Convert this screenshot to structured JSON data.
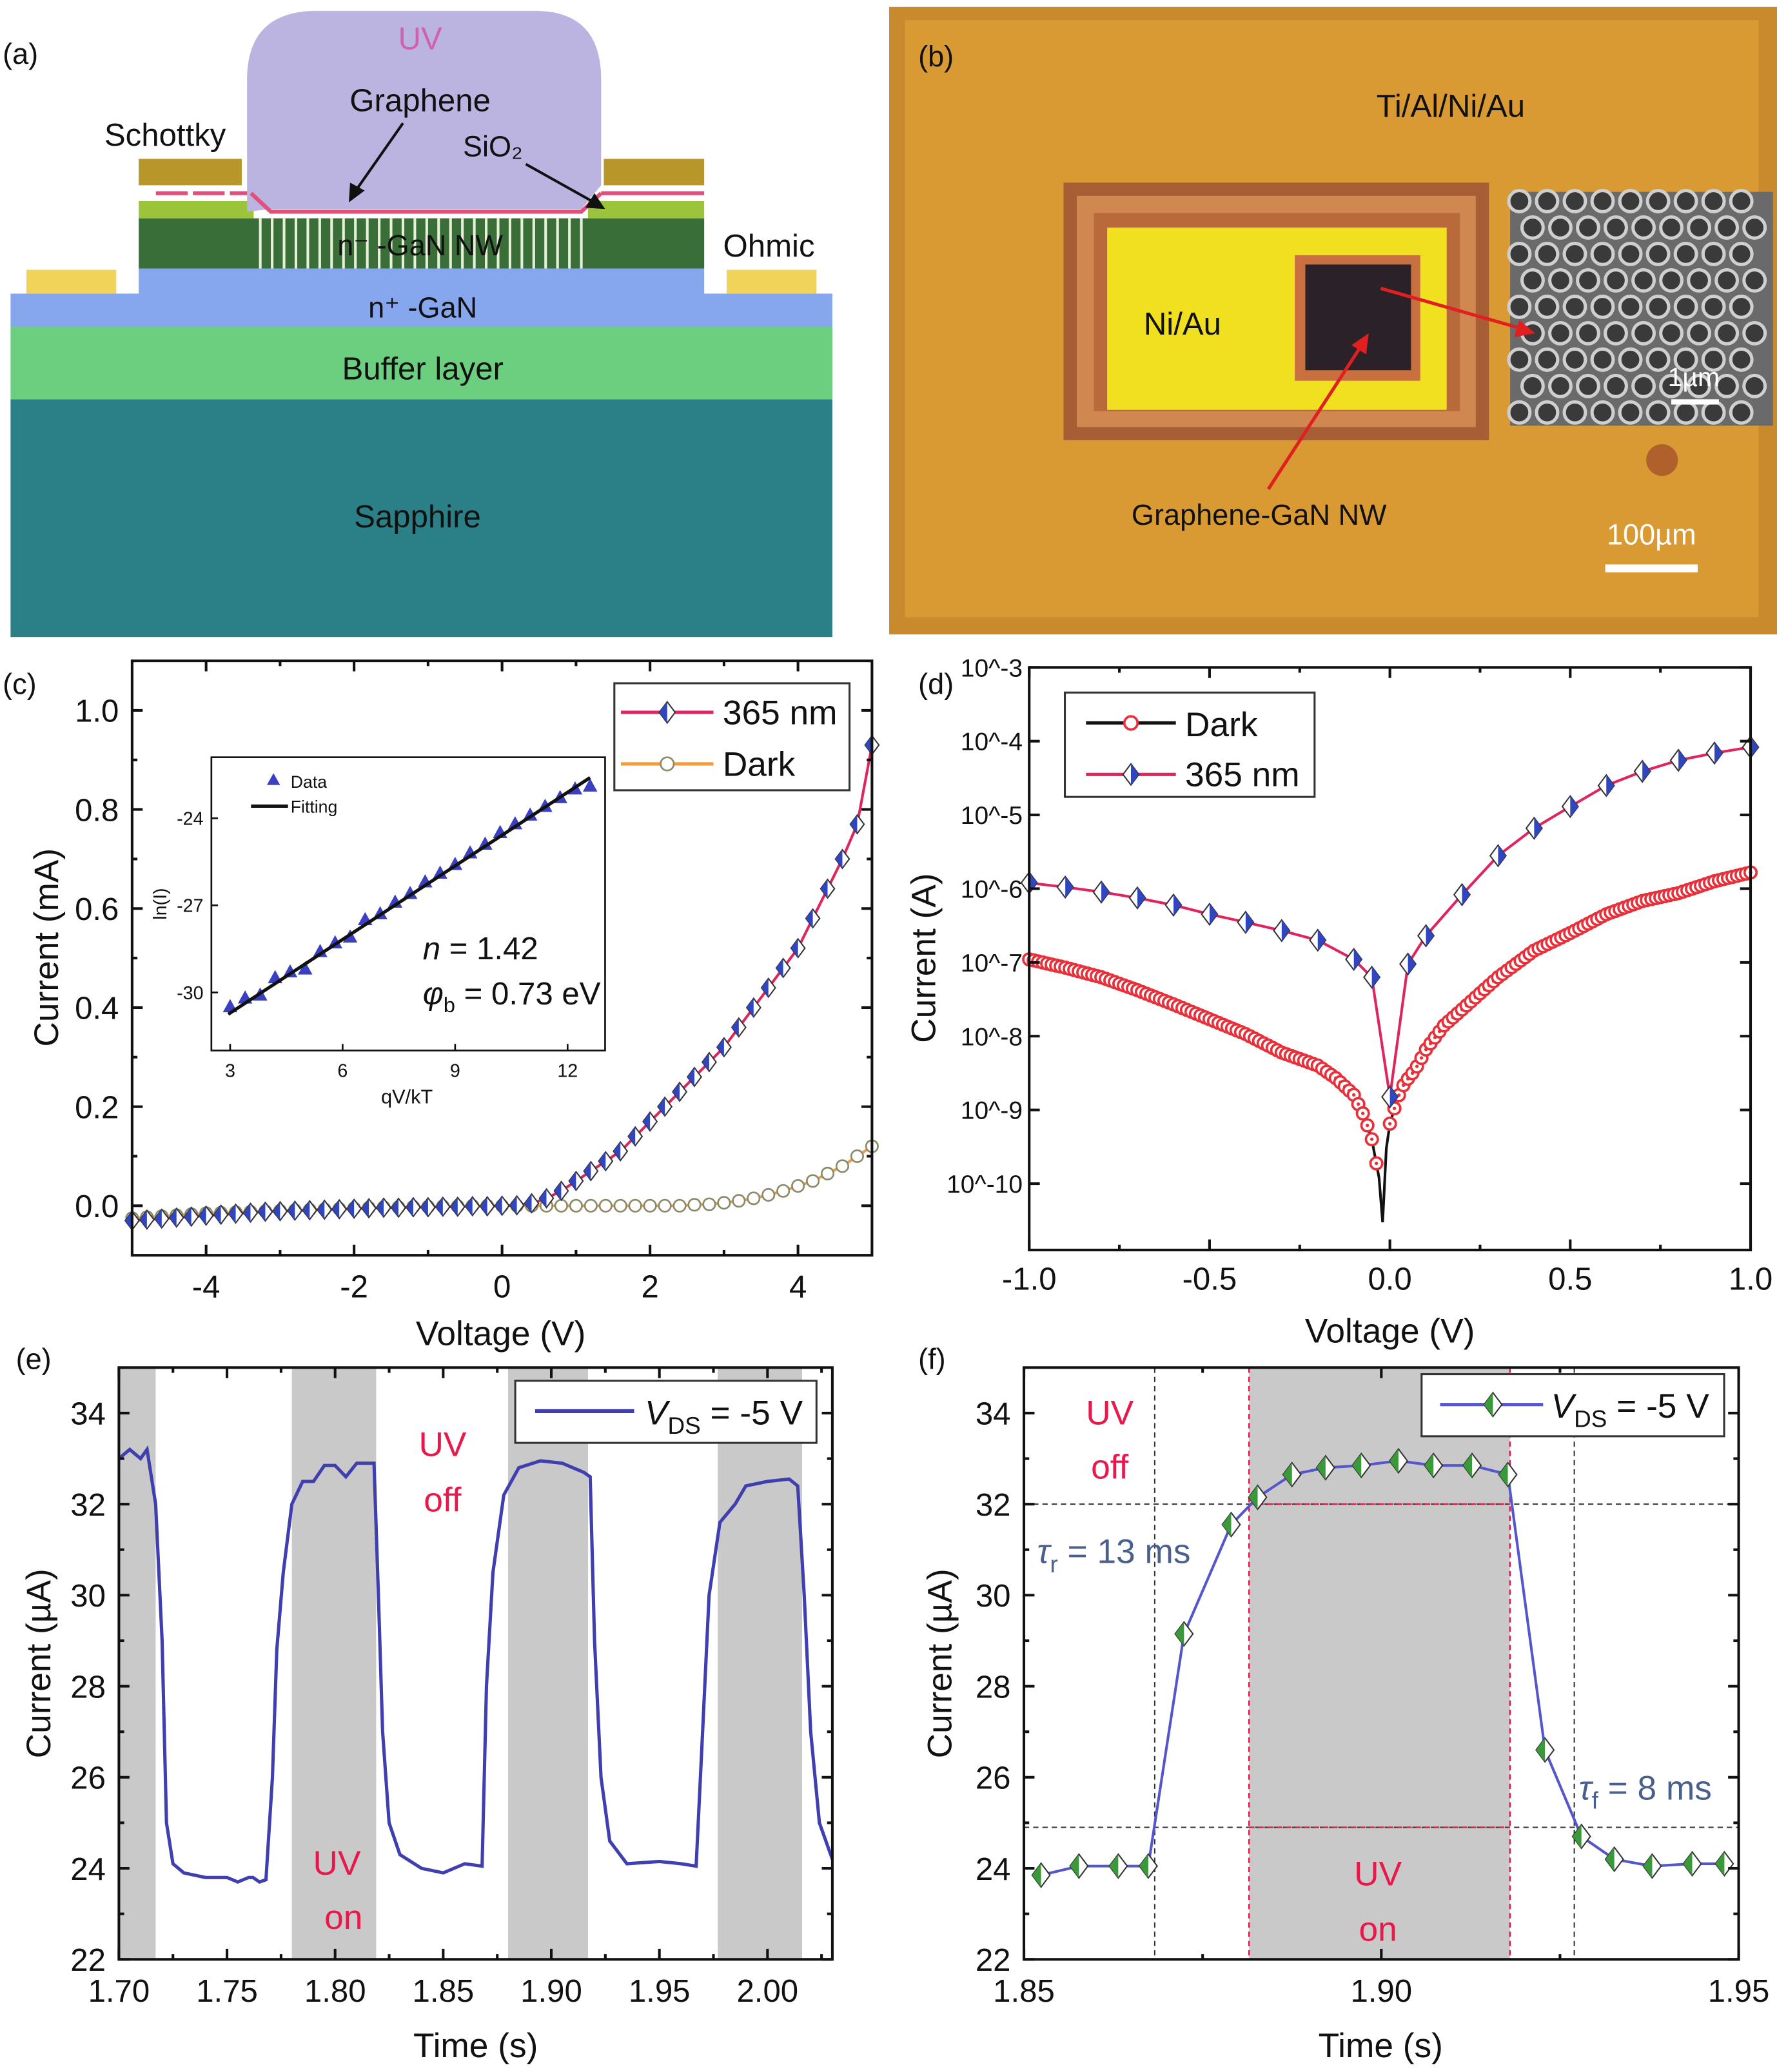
{
  "panel_a": {
    "label": "(a)",
    "uv": "UV",
    "graphene": "Graphene",
    "schottky": "Schottky",
    "sio2": "SiO₂",
    "nw_layer": "n⁻ -GaN NW",
    "ohmic": "Ohmic",
    "nplus_layer": "n⁺ -GaN",
    "buffer": "Buffer layer",
    "substrate": "Sapphire",
    "colors": {
      "uv": "#bcb4e0",
      "sapphire": "#2b7f86",
      "buffer": "#6ccf80",
      "nplus": "#86a6ee",
      "nw": "#3a6e38",
      "schottky": "#b8962a",
      "ohmic": "#f0d35a",
      "sio2": "#e0507a"
    }
  },
  "panel_b": {
    "label": "(b)",
    "outer_metal": "Ti/Al/Ni/Au",
    "inner_metal": "Ni/Au",
    "active": "Graphene-GaN NW",
    "sem_scale": "1µm",
    "scale": "100µm"
  },
  "chart_data": [
    {
      "panel": "(c)",
      "type": "line",
      "xlabel": "Voltage (V)",
      "ylabel": "Current (mA)",
      "xlim": [
        -5,
        5
      ],
      "ylim": [
        -0.1,
        1.1
      ],
      "xticks": [
        -4,
        -2,
        0,
        2,
        4
      ],
      "xtick_labels": [
        "-4",
        "-2",
        "0",
        "2",
        "4"
      ],
      "yticks": [
        0,
        0.2,
        0.4,
        0.6,
        0.8,
        1.0
      ],
      "ytick_labels": [
        "0.0",
        "0.2",
        "0.4",
        "0.6",
        "0.8",
        "1.0"
      ],
      "legend": "top-right",
      "x": [
        -5,
        -4.8,
        -4.6,
        -4.4,
        -4.2,
        -4,
        -3.8,
        -3.6,
        -3.4,
        -3.2,
        -3,
        -2.8,
        -2.6,
        -2.4,
        -2.2,
        -2,
        -1.8,
        -1.6,
        -1.4,
        -1.2,
        -1,
        -0.8,
        -0.6,
        -0.4,
        -0.2,
        0,
        0.2,
        0.4,
        0.6,
        0.8,
        1,
        1.2,
        1.4,
        1.6,
        1.8,
        2,
        2.2,
        2.4,
        2.6,
        2.8,
        3,
        3.2,
        3.4,
        3.6,
        3.8,
        4,
        4.2,
        4.4,
        4.6,
        4.8,
        5
      ],
      "series": [
        {
          "name": "365 nm",
          "color": "#e0245e",
          "marker_color": "#3046c0",
          "values": [
            -0.03,
            -0.028,
            -0.026,
            -0.024,
            -0.022,
            -0.02,
            -0.018,
            -0.016,
            -0.014,
            -0.012,
            -0.011,
            -0.01,
            -0.009,
            -0.008,
            -0.007,
            -0.006,
            -0.005,
            -0.004,
            -0.004,
            -0.003,
            -0.003,
            -0.002,
            -0.002,
            -0.001,
            -0.001,
            0,
            0.001,
            0.005,
            0.015,
            0.03,
            0.05,
            0.07,
            0.09,
            0.11,
            0.14,
            0.17,
            0.2,
            0.23,
            0.26,
            0.29,
            0.32,
            0.36,
            0.4,
            0.44,
            0.48,
            0.52,
            0.58,
            0.64,
            0.7,
            0.77,
            0.93
          ]
        },
        {
          "name": "Dark",
          "color": "#f59a3a",
          "marker_color": "#8a8a6a",
          "values": [
            -0.025,
            -0.023,
            -0.021,
            -0.019,
            -0.017,
            -0.015,
            -0.014,
            -0.013,
            -0.012,
            -0.011,
            -0.01,
            -0.009,
            -0.008,
            -0.007,
            -0.006,
            -0.005,
            -0.004,
            -0.003,
            -0.003,
            -0.002,
            -0.002,
            -0.001,
            -0.001,
            0,
            0,
            0,
            0,
            0,
            0,
            0,
            0,
            0,
            0,
            0,
            0,
            0,
            0,
            0,
            0.002,
            0.003,
            0.006,
            0.01,
            0.015,
            0.022,
            0.03,
            0.04,
            0.05,
            0.065,
            0.08,
            0.1,
            0.12
          ]
        }
      ]
    },
    {
      "panel": "(c) inset",
      "type": "scatter",
      "xlabel": "qV/kT",
      "ylabel": "ln(I)",
      "xlim": [
        2.5,
        13
      ],
      "ylim": [
        -32,
        -21.9
      ],
      "xticks": [
        3,
        6,
        9,
        12
      ],
      "xtick_labels": [
        "3",
        "6",
        "9",
        "12"
      ],
      "yticks": [
        -24,
        -27,
        -30
      ],
      "ytick_labels": [
        "-24",
        "-27",
        "-30"
      ],
      "legend": "top-left",
      "x": [
        3.0,
        3.4,
        3.8,
        4.2,
        4.6,
        5.0,
        5.4,
        5.8,
        6.2,
        6.6,
        7.0,
        7.4,
        7.8,
        8.2,
        8.6,
        9.0,
        9.4,
        9.8,
        10.2,
        10.6,
        11.0,
        11.4,
        11.8,
        12.2,
        12.6
      ],
      "series": [
        {
          "name": "Data",
          "color": "#3a40c0",
          "values": [
            -30.5,
            -30.2,
            -30.1,
            -29.5,
            -29.3,
            -29.2,
            -28.6,
            -28.3,
            -28.1,
            -27.5,
            -27.3,
            -26.9,
            -26.6,
            -26.2,
            -25.9,
            -25.6,
            -25.2,
            -24.9,
            -24.5,
            -24.2,
            -23.9,
            -23.6,
            -23.3,
            -23.0,
            -22.9
          ]
        },
        {
          "name": "Fitting",
          "color": "#111111",
          "x": [
            2.95,
            12.6
          ],
          "values": [
            -30.75,
            -22.6
          ]
        }
      ],
      "annotations": {
        "ideality": {
          "symbol": "n",
          "text": " = 1.42"
        },
        "barrier": {
          "symbol": "φ",
          "sub": "b",
          "text": " = 0.73 eV"
        }
      }
    },
    {
      "panel": "(d)",
      "type": "line",
      "xlabel": "Voltage (V)",
      "ylabel": "Current (A)",
      "xlim": [
        -1,
        1
      ],
      "ylim": [
        1.26e-11,
        0.001
      ],
      "yscale": "log",
      "xticks": [
        -1,
        -0.5,
        0,
        0.5,
        1
      ],
      "xtick_labels": [
        "-1.0",
        "-0.5",
        "0.0",
        "0.5",
        "1.0"
      ],
      "yticks": [
        0.001,
        0.0001,
        1e-05,
        1e-06,
        1e-07,
        1e-08,
        1e-09,
        1e-10
      ],
      "ytick_labels": [
        "10^-3",
        "10^-4",
        "10^-5",
        "10^-6",
        "10^-7",
        "10^-8",
        "10^-9",
        "10^-10"
      ],
      "legend": "top-left",
      "series": [
        {
          "name": "Dark",
          "color": "#111111",
          "marker_color": "#e8303a",
          "x": [
            -1,
            -0.9,
            -0.8,
            -0.7,
            -0.6,
            -0.5,
            -0.4,
            -0.3,
            -0.2,
            -0.15,
            -0.1,
            -0.07,
            -0.05,
            -0.03,
            -0.02,
            -0.01,
            0,
            0.02,
            0.04,
            0.07,
            0.1,
            0.15,
            0.2,
            0.3,
            0.4,
            0.5,
            0.6,
            0.7,
            0.8,
            0.9,
            1.0
          ],
          "values": [
            1.1e-07,
            8.5e-08,
            6.3e-08,
            4.2e-08,
            2.7e-08,
            1.7e-08,
            1.07e-08,
            6e-09,
            4e-09,
            2.7e-09,
            1.6e-09,
            8e-10,
            4e-10,
            1.2e-10,
            3e-11,
            3e-10,
            6.5e-10,
            1.4e-09,
            2.3e-09,
            3.5e-09,
            6.6e-09,
            1.4e-08,
            2.3e-08,
            6.3e-08,
            1.45e-07,
            2.5e-07,
            4.5e-07,
            6.8e-07,
            8.7e-07,
            1.26e-06,
            1.66e-06
          ]
        },
        {
          "name": "365 nm",
          "color": "#e0245e",
          "marker_color": "#3046c0",
          "x": [
            -1,
            -0.9,
            -0.8,
            -0.7,
            -0.6,
            -0.5,
            -0.4,
            -0.3,
            -0.2,
            -0.1,
            -0.05,
            0,
            0.05,
            0.1,
            0.2,
            0.3,
            0.4,
            0.5,
            0.6,
            0.7,
            0.8,
            0.9,
            1.0
          ],
          "values": [
            1.2e-06,
            1.05e-06,
            9e-07,
            7.5e-07,
            6e-07,
            4.5e-07,
            3.5e-07,
            2.7e-07,
            2e-07,
            1.1e-07,
            6.3e-08,
            1.5e-09,
            9.5e-08,
            2.3e-07,
            8.3e-07,
            2.8e-06,
            6.6e-06,
            1.3e-05,
            2.5e-05,
            3.9e-05,
            5.5e-05,
            6.9e-05,
            8.3e-05
          ]
        }
      ]
    },
    {
      "panel": "(e)",
      "type": "line",
      "xlabel": "Time (s)",
      "ylabel": "Current (µA)",
      "xlim": [
        1.7,
        2.03
      ],
      "ylim": [
        22,
        35
      ],
      "xticks": [
        1.7,
        1.75,
        1.8,
        1.85,
        1.9,
        1.95,
        2.0
      ],
      "xtick_labels": [
        "1.70",
        "1.75",
        "1.80",
        "1.85",
        "1.90",
        "1.95",
        "2.00"
      ],
      "yticks": [
        22,
        24,
        26,
        28,
        30,
        32,
        34
      ],
      "ytick_labels": [
        "22",
        "24",
        "26",
        "28",
        "30",
        "32",
        "34"
      ],
      "legend": "top-right",
      "uv_on_intervals": [
        [
          1.7,
          1.717
        ],
        [
          1.78,
          1.819
        ],
        [
          1.88,
          1.917
        ],
        [
          1.977,
          2.016
        ]
      ],
      "series": [
        {
          "name": "V_DS = -5 V",
          "color": "#3f3fb0",
          "x": [
            1.7,
            1.705,
            1.71,
            1.713,
            1.717,
            1.72,
            1.722,
            1.725,
            1.73,
            1.74,
            1.75,
            1.755,
            1.76,
            1.762,
            1.765,
            1.768,
            1.771,
            1.773,
            1.776,
            1.78,
            1.785,
            1.79,
            1.795,
            1.8,
            1.805,
            1.81,
            1.818,
            1.82,
            1.822,
            1.825,
            1.83,
            1.84,
            1.85,
            1.86,
            1.868,
            1.87,
            1.873,
            1.878,
            1.885,
            1.895,
            1.905,
            1.915,
            1.918,
            1.92,
            1.923,
            1.927,
            1.935,
            1.95,
            1.96,
            1.967,
            1.97,
            1.973,
            1.978,
            1.985,
            1.99,
            2.0,
            2.01,
            2.014,
            2.017,
            2.02,
            2.024,
            2.03
          ],
          "values": [
            33.0,
            33.2,
            33.0,
            33.2,
            32.0,
            29.0,
            25.0,
            24.1,
            23.9,
            23.8,
            23.8,
            23.7,
            23.8,
            23.8,
            23.7,
            23.75,
            26.0,
            28.8,
            30.5,
            32.0,
            32.5,
            32.5,
            32.85,
            32.85,
            32.6,
            32.9,
            32.9,
            30.0,
            27.0,
            25.0,
            24.3,
            24.0,
            23.9,
            24.1,
            24.05,
            28.0,
            30.5,
            32.2,
            32.8,
            32.95,
            32.9,
            32.7,
            32.6,
            29.0,
            26.0,
            24.6,
            24.1,
            24.15,
            24.1,
            24.05,
            27.0,
            30.0,
            31.6,
            32.0,
            32.4,
            32.5,
            32.55,
            32.4,
            30.0,
            27.0,
            25.0,
            24.2
          ]
        }
      ],
      "legend_entry": {
        "symbol": "V",
        "sub": "DS",
        "text": " = -5 V"
      },
      "annotations": {
        "uv_off": [
          "UV",
          "off"
        ],
        "uv_on": [
          "UV",
          "on"
        ]
      }
    },
    {
      "panel": "(f)",
      "type": "line",
      "xlabel": "Time (s)",
      "ylabel": "Current (µA)",
      "xlim": [
        1.85,
        1.95
      ],
      "ylim": [
        22,
        35
      ],
      "xticks": [
        1.85,
        1.9,
        1.95
      ],
      "xtick_labels": [
        "1.85",
        "1.90",
        "1.95"
      ],
      "yticks": [
        22,
        24,
        26,
        28,
        30,
        32,
        34
      ],
      "ytick_labels": [
        "22",
        "24",
        "26",
        "28",
        "30",
        "32",
        "34"
      ],
      "legend": "top-right",
      "uv_on_interval": [
        1.8815,
        1.918
      ],
      "guide_x": [
        1.8683,
        1.927
      ],
      "guide_y": [
        32.0,
        24.9
      ],
      "series": [
        {
          "name": "V_DS = -5 V",
          "color": "#5555cc",
          "marker_color": "#3a9a3a",
          "x": [
            1.8524,
            1.8577,
            1.8632,
            1.8674,
            1.8724,
            1.879,
            1.8827,
            1.8875,
            1.8922,
            1.8972,
            1.9024,
            1.9073,
            1.9127,
            1.9177,
            1.9229,
            1.928,
            1.9326,
            1.9379,
            1.9435,
            1.948
          ],
          "values": [
            23.85,
            24.05,
            24.05,
            24.05,
            29.15,
            31.55,
            32.15,
            32.65,
            32.8,
            32.85,
            32.95,
            32.85,
            32.85,
            32.65,
            26.6,
            24.7,
            24.2,
            24.05,
            24.1,
            24.1
          ]
        }
      ],
      "legend_entry": {
        "symbol": "V",
        "sub": "DS",
        "text": " = -5 V"
      },
      "annotations": {
        "uv_off": [
          "UV",
          "off"
        ],
        "uv_on": [
          "UV",
          "on"
        ],
        "rise": {
          "symbol": "τ",
          "sub": "r",
          "text": " = 13 ms"
        },
        "fall": {
          "symbol": "τ",
          "sub": "f",
          "text": " = 8 ms"
        }
      }
    }
  ]
}
